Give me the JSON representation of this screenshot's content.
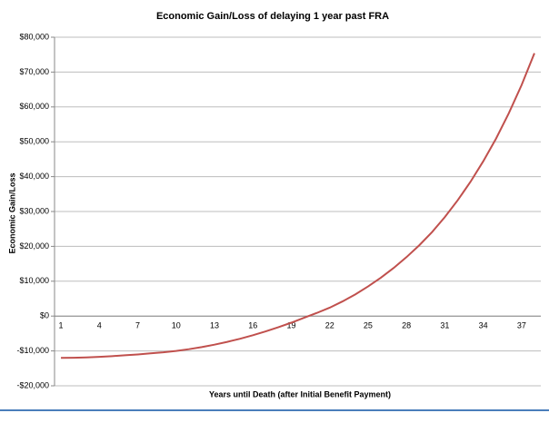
{
  "chart_data": {
    "type": "line",
    "title": "Economic Gain/Loss of delaying 1 year past FRA",
    "x_label": "Years until Death (after Initial Benefit Payment)",
    "y_label": "Economic Gain/Loss",
    "categories": [
      1,
      null,
      null,
      4,
      null,
      null,
      7,
      null,
      null,
      10,
      null,
      null,
      13,
      null,
      null,
      16,
      null,
      null,
      19,
      null,
      null,
      22,
      null,
      null,
      25,
      null,
      null,
      28,
      null,
      null,
      31,
      null,
      null,
      34,
      null,
      null,
      37,
      null
    ],
    "series": [
      {
        "name": "Economic Gain/Loss",
        "color": "#c0504d",
        "values": [
          -12000,
          -11950,
          -11850,
          -11700,
          -11500,
          -11250,
          -11000,
          -10700,
          -10400,
          -10000,
          -9500,
          -8900,
          -8200,
          -7400,
          -6500,
          -5500,
          -4400,
          -3200,
          -1900,
          -500,
          900,
          2400,
          4200,
          6200,
          8500,
          11000,
          13800,
          16900,
          20300,
          24100,
          28400,
          33200,
          38500,
          44400,
          50900,
          58200,
          66300,
          75400
        ]
      }
    ],
    "ylim": [
      -20000,
      80000
    ],
    "yticks": [
      {
        "value": -20000,
        "label": "-$20,000"
      },
      {
        "value": -10000,
        "label": "-$10,000"
      },
      {
        "value": 0,
        "label": "$0"
      },
      {
        "value": 10000,
        "label": "$10,000"
      },
      {
        "value": 20000,
        "label": "$20,000"
      },
      {
        "value": 30000,
        "label": "$30,000"
      },
      {
        "value": 40000,
        "label": "$40,000"
      },
      {
        "value": 50000,
        "label": "$50,000"
      },
      {
        "value": 60000,
        "label": "$60,000"
      },
      {
        "value": 70000,
        "label": "$70,000"
      },
      {
        "value": 80000,
        "label": "$80,000"
      }
    ],
    "grid": true
  }
}
